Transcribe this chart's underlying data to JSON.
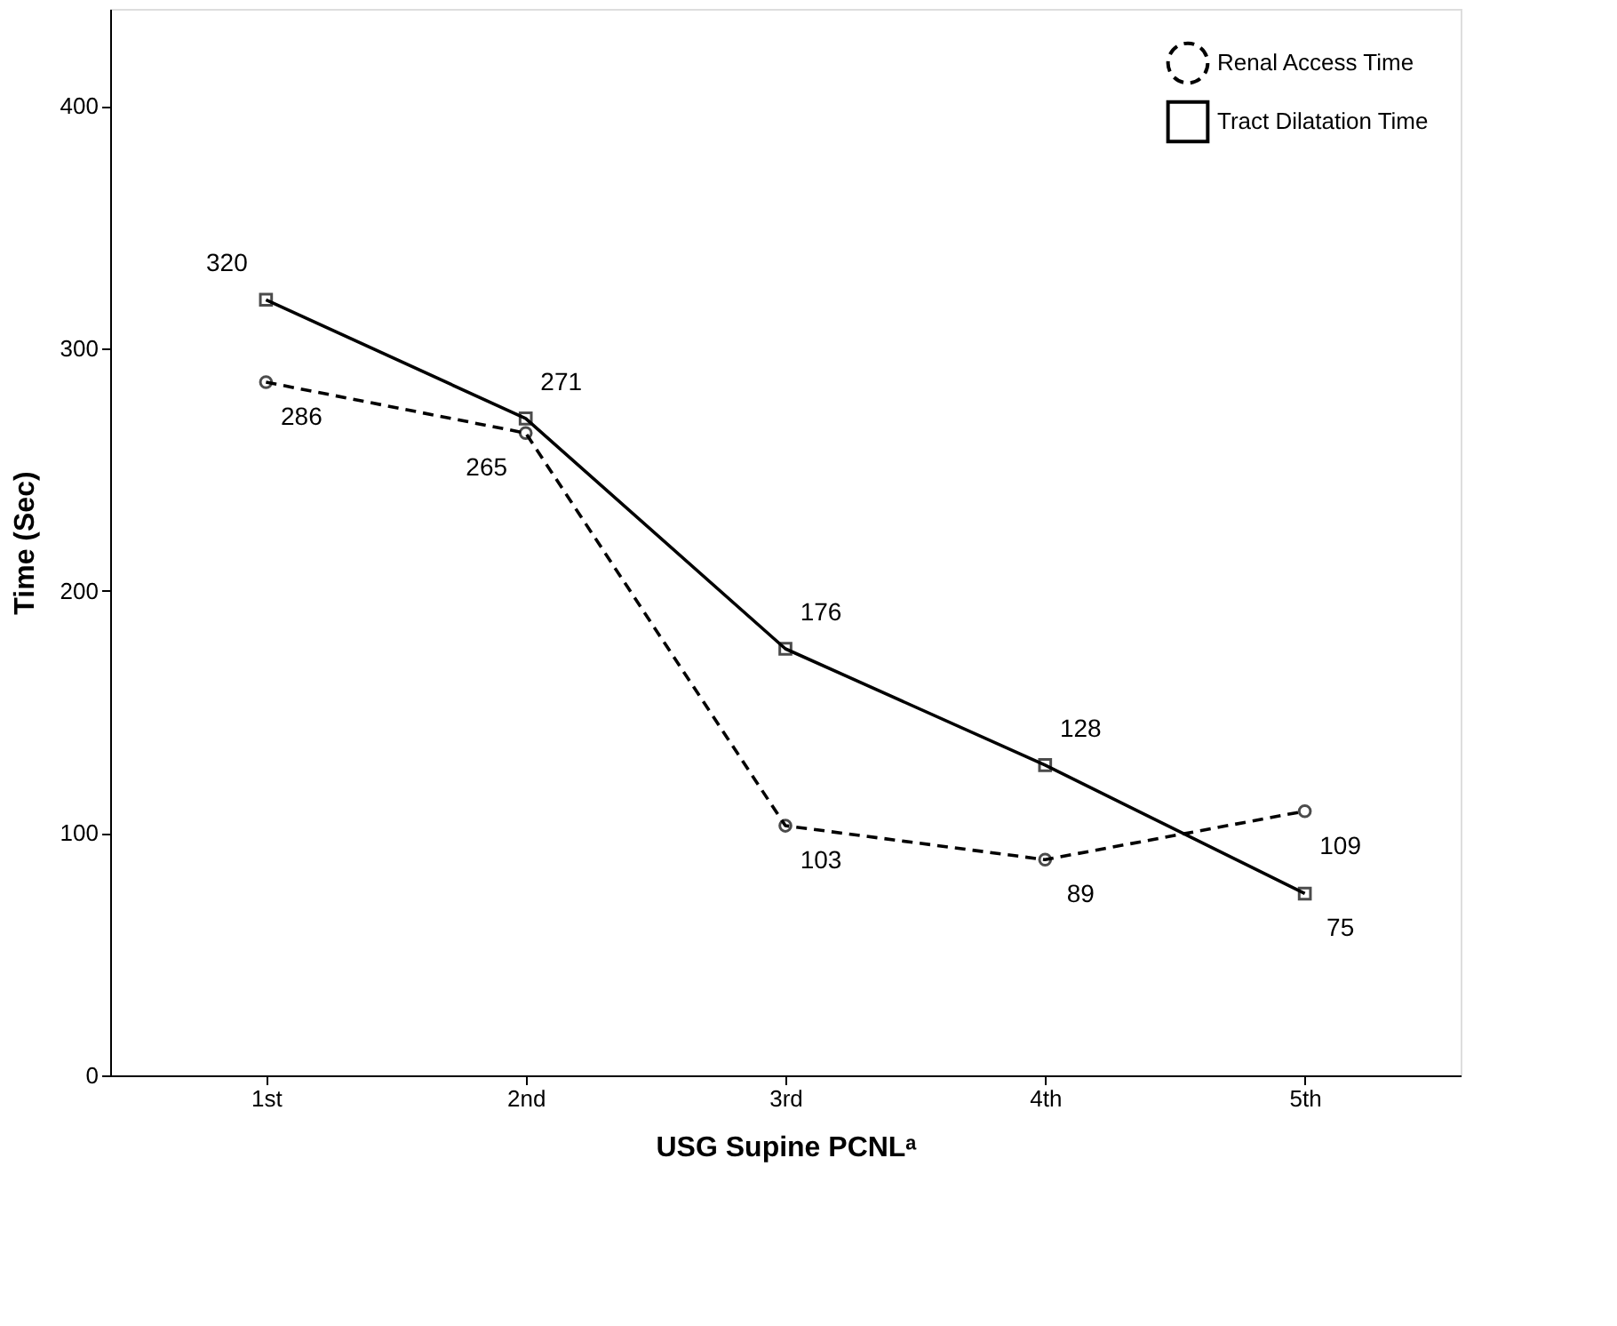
{
  "chart_data": {
    "type": "line",
    "xlabel": "USG Supine PCNLᵃ",
    "ylabel": "Time (Sec)",
    "categories": [
      "1st",
      "2nd",
      "3rd",
      "4th",
      "5th"
    ],
    "series": [
      {
        "name": "Renal Access Time",
        "color": "#000000",
        "values": [
          286,
          265,
          103,
          89,
          109
        ],
        "marker": "circle",
        "line_style": "dashed"
      },
      {
        "name": "Tract Dilatation Time",
        "color": "#000000",
        "values": [
          320,
          271,
          176,
          128,
          75
        ],
        "marker": "square",
        "line_style": "solid"
      }
    ],
    "ylim": [
      0,
      440
    ],
    "yticks": [
      0,
      100,
      200,
      300,
      400
    ],
    "grid": false,
    "legend": "top right",
    "data_labels": true
  }
}
